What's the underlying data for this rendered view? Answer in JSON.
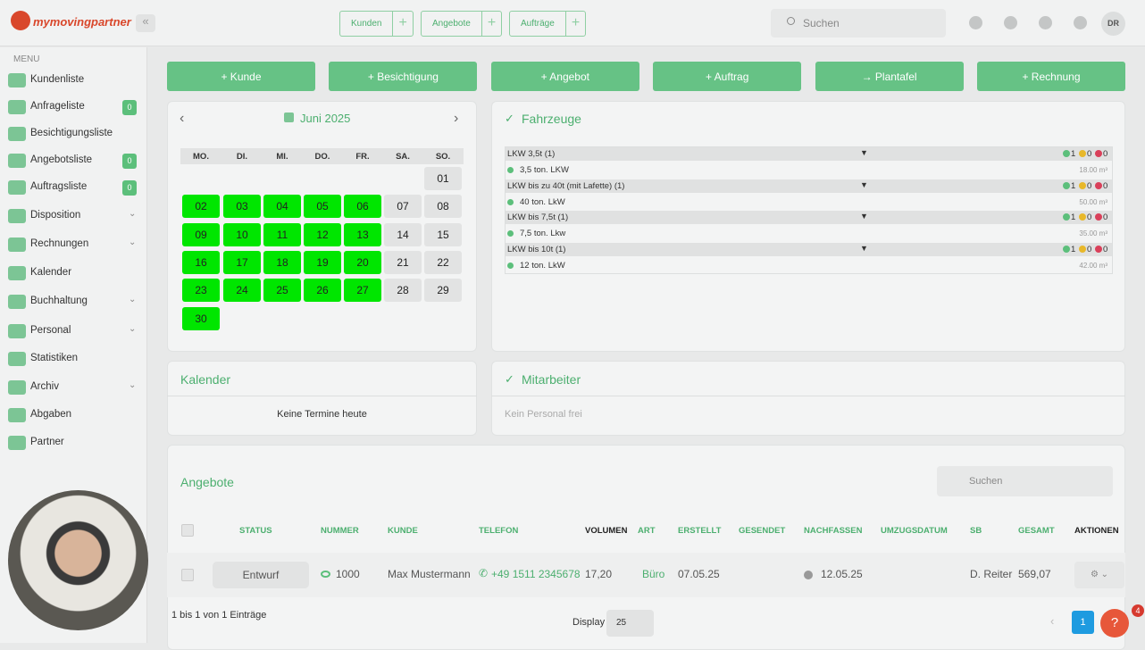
{
  "header": {
    "logo": "mymovingpartner",
    "tabs": [
      "Kunden",
      "Angebote",
      "Aufträge"
    ],
    "search": "Suchen",
    "avatar": "DR"
  },
  "sidebar": {
    "menu_label": "MENU",
    "items": [
      {
        "label": "Kundenliste"
      },
      {
        "label": "Anfrageliste",
        "badge": 0
      },
      {
        "label": "Besichtigungsliste"
      },
      {
        "label": "Angebotsliste",
        "badge": 0
      },
      {
        "label": "Auftragsliste",
        "badge": 0
      },
      {
        "label": "Disposition"
      },
      {
        "label": "Rechnungen"
      },
      {
        "label": "Kalender"
      },
      {
        "label": "Buchhaltung"
      },
      {
        "label": "Personal"
      },
      {
        "label": "Statistiken"
      },
      {
        "label": "Archiv"
      },
      {
        "label": "Abgaben"
      },
      {
        "label": "Partner"
      }
    ]
  },
  "actions": [
    "Kunde",
    "Besichtigung",
    "Angebot",
    "Auftrag",
    "Plantafel",
    "Rechnung"
  ],
  "calendar": {
    "month": "Juni 2025",
    "weekdays": [
      "MO.",
      "DI.",
      "MI.",
      "DO.",
      "FR.",
      "SA.",
      "SO."
    ],
    "weeks": [
      [
        null,
        null,
        null,
        null,
        null,
        null,
        "01"
      ],
      [
        "02",
        "03",
        "04",
        "05",
        "06",
        "07",
        "08"
      ],
      [
        "09",
        "10",
        "11",
        "12",
        "13",
        "14",
        "15"
      ],
      [
        "16",
        "17",
        "18",
        "19",
        "20",
        "21",
        "22"
      ],
      [
        "23",
        "24",
        "25",
        "26",
        "27",
        "28",
        "29"
      ],
      [
        "30",
        null,
        null,
        null,
        null,
        null,
        null
      ]
    ],
    "highlight_color": "#00e600"
  },
  "vehicles": {
    "title": "Fahrzeuge",
    "groups": [
      {
        "name": "LKW 3,5t (1)",
        "counts": [
          1,
          0,
          0
        ],
        "vehicle": "3,5 ton. LKW",
        "volume": "18.00 m³"
      },
      {
        "name": "LKW bis zu 40t (mit Lafette) (1)",
        "counts": [
          1,
          0,
          0
        ],
        "vehicle": "40 ton. LkW",
        "volume": "50.00 m³"
      },
      {
        "name": "LKW bis 7,5t (1)",
        "counts": [
          1,
          0,
          0
        ],
        "vehicle": "7,5 ton. Lkw",
        "volume": "35.00 m³"
      },
      {
        "name": "LKW bis 10t (1)",
        "counts": [
          1,
          0,
          0
        ],
        "vehicle": "12 ton. LkW",
        "volume": "42.00 m³"
      }
    ]
  },
  "calendar_panel": {
    "title": "Kalender",
    "message": "Keine Termine heute"
  },
  "staff_panel": {
    "title": "Mitarbeiter",
    "message": "Kein Personal frei"
  },
  "offers": {
    "title": "Angebote",
    "search": "Suchen",
    "columns": [
      "STATUS",
      "NUMMER",
      "KUNDE",
      "TELEFON",
      "VOLUMEN",
      "ART",
      "ERSTELLT",
      "GESENDET",
      "NACHFASSEN",
      "UMZUGSDATUM",
      "SB",
      "GESAMT",
      "AKTIONEN"
    ],
    "rows": [
      [
        "Entwurf",
        "1000",
        "Max Mustermann",
        "+49 1511 2345678",
        "17,20",
        "Büro",
        "07.05.25",
        null,
        "12.05.25",
        null,
        "D. Reiter",
        "569,07",
        null
      ]
    ],
    "footer": "1 bis 1 von 1 Einträge",
    "display_label": "Display",
    "page_size": "25",
    "page": "1",
    "help_badge": "4"
  }
}
